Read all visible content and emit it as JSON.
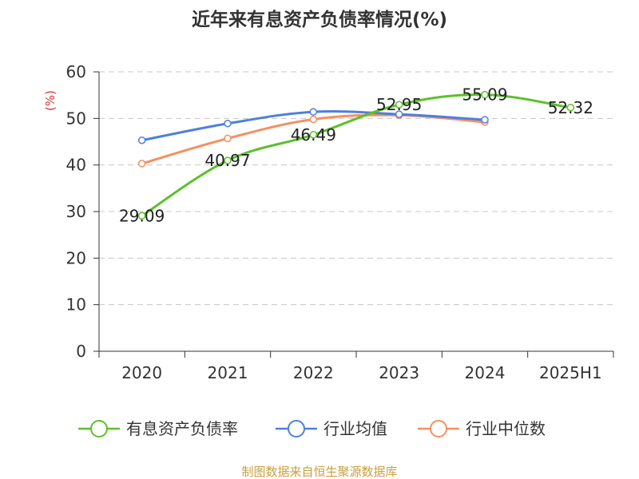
{
  "chart_data": {
    "type": "line",
    "title": "近年来有息资产负债率情况(%)",
    "ylabel": "(%)",
    "xlabel": "",
    "categories": [
      "2020",
      "2021",
      "2022",
      "2023",
      "2024",
      "2025H1"
    ],
    "ylim": [
      0,
      60
    ],
    "yticks": [
      0,
      10,
      20,
      30,
      40,
      50,
      60
    ],
    "grid": true,
    "legend_position": "bottom",
    "series": [
      {
        "name": "有息资产负债率",
        "color": "#5cc02c",
        "values": [
          29.09,
          40.97,
          46.49,
          52.95,
          55.09,
          52.32
        ],
        "labels": [
          "29.09",
          "40.97",
          "46.49",
          "52.95",
          "55.09",
          "52.32"
        ]
      },
      {
        "name": "行业均值",
        "color": "#4e80dc",
        "values": [
          45.3,
          48.9,
          51.4,
          50.9,
          49.7,
          null
        ]
      },
      {
        "name": "行业中位数",
        "color": "#f59060",
        "values": [
          40.3,
          45.7,
          49.8,
          50.7,
          49.2,
          null
        ]
      }
    ]
  },
  "source": "制图数据来自恒生聚源数据库"
}
